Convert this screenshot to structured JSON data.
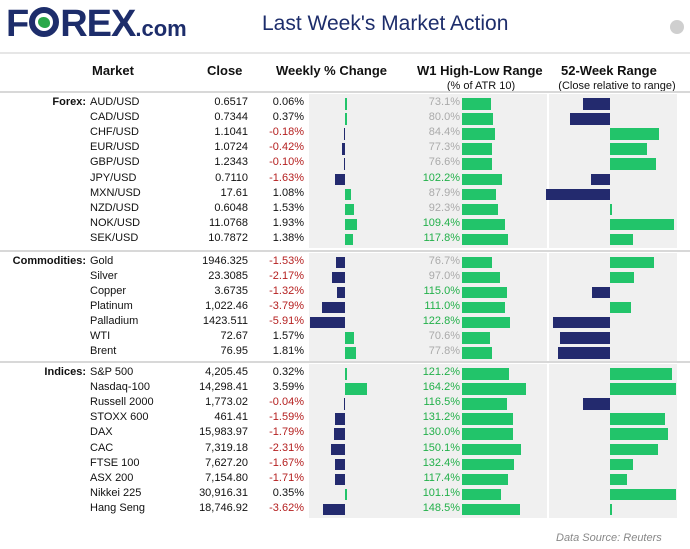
{
  "header": {
    "logo_text": "FOREX",
    "logo_suffix": ".com",
    "title": "Last Week's Market Action"
  },
  "columns": {
    "market": "Market",
    "close": "Close",
    "weekly": "Weekly % Change",
    "w1": "W1 High-Low Range",
    "w1_sub": "(% of ATR 10)",
    "w52": "52-Week Range",
    "w52_sub": "(Close relative to range)"
  },
  "colors": {
    "positive": "#22c46a",
    "negative": "#232a6e",
    "neg_text": "#b52020",
    "pos_text": "#111111",
    "atr_high": "#22b04a",
    "atr_low": "#aaaaaa"
  },
  "source": "Data Source: Reuters",
  "chart_data": {
    "type": "table",
    "groups": [
      {
        "label": "Forex:",
        "rows": [
          {
            "market": "AUD/USD",
            "close": "0.6517",
            "weekly": "0.06%",
            "weekly_value": 0.06,
            "atr": "73.1%",
            "atr_value": 73.1,
            "w52_value": -0.4
          },
          {
            "market": "CAD/USD",
            "close": "0.7344",
            "weekly": "0.37%",
            "weekly_value": 0.37,
            "atr": "80.0%",
            "atr_value": 80.0,
            "w52_value": -0.6
          },
          {
            "market": "CHF/USD",
            "close": "1.1041",
            "weekly": "-0.18%",
            "weekly_value": -0.18,
            "atr": "84.4%",
            "atr_value": 84.4,
            "w52_value": 0.73
          },
          {
            "market": "EUR/USD",
            "close": "1.0724",
            "weekly": "-0.42%",
            "weekly_value": -0.42,
            "atr": "77.3%",
            "atr_value": 77.3,
            "w52_value": 0.55
          },
          {
            "market": "GBP/USD",
            "close": "1.2343",
            "weekly": "-0.10%",
            "weekly_value": -0.1,
            "atr": "76.6%",
            "atr_value": 76.6,
            "w52_value": 0.68
          },
          {
            "market": "JPY/USD",
            "close": "0.7110",
            "weekly": "-1.63%",
            "weekly_value": -1.63,
            "atr": "102.2%",
            "atr_value": 102.2,
            "w52_value": -0.28
          },
          {
            "market": "MXN/USD",
            "close": "17.61",
            "weekly": "1.08%",
            "weekly_value": 1.08,
            "atr": "87.9%",
            "atr_value": 87.9,
            "w52_value": -0.96
          },
          {
            "market": "NZD/USD",
            "close": "0.6048",
            "weekly": "1.53%",
            "weekly_value": 1.53,
            "atr": "92.3%",
            "atr_value": 92.3,
            "w52_value": 0.02
          },
          {
            "market": "NOK/USD",
            "close": "11.0768",
            "weekly": "1.93%",
            "weekly_value": 1.93,
            "atr": "109.4%",
            "atr_value": 109.4,
            "w52_value": 0.96
          },
          {
            "market": "SEK/USD",
            "close": "10.7872",
            "weekly": "1.38%",
            "weekly_value": 1.38,
            "atr": "117.8%",
            "atr_value": 117.8,
            "w52_value": 0.34
          }
        ]
      },
      {
        "label": "Commodities:",
        "rows": [
          {
            "market": "Gold",
            "close": "1946.325",
            "weekly": "-1.53%",
            "weekly_value": -1.53,
            "atr": "76.7%",
            "atr_value": 76.7,
            "w52_value": 0.65
          },
          {
            "market": "Silver",
            "close": "23.3085",
            "weekly": "-2.17%",
            "weekly_value": -2.17,
            "atr": "97.0%",
            "atr_value": 97.0,
            "w52_value": 0.36
          },
          {
            "market": "Copper",
            "close": "3.6735",
            "weekly": "-1.32%",
            "weekly_value": -1.32,
            "atr": "115.0%",
            "atr_value": 115.0,
            "w52_value": -0.27
          },
          {
            "market": "Platinum",
            "close": "1,022.46",
            "weekly": "-3.79%",
            "weekly_value": -3.79,
            "atr": "111.0%",
            "atr_value": 111.0,
            "w52_value": 0.31
          },
          {
            "market": "Palladium",
            "close": "1423.511",
            "weekly": "-5.91%",
            "weekly_value": -5.91,
            "atr": "122.8%",
            "atr_value": 122.8,
            "w52_value": -0.85
          },
          {
            "market": "WTI",
            "close": "72.67",
            "weekly": "1.57%",
            "weekly_value": 1.57,
            "atr": "70.6%",
            "atr_value": 70.6,
            "w52_value": -0.75
          },
          {
            "market": "Brent",
            "close": "76.95",
            "weekly": "1.81%",
            "weekly_value": 1.81,
            "atr": "77.8%",
            "atr_value": 77.8,
            "w52_value": -0.78
          }
        ]
      },
      {
        "label": "Indices:",
        "rows": [
          {
            "market": "S&P 500",
            "close": "4,205.45",
            "weekly": "0.32%",
            "weekly_value": 0.32,
            "atr": "121.2%",
            "atr_value": 121.2,
            "w52_value": 0.92
          },
          {
            "market": "Nasdaq-100",
            "close": "14,298.41",
            "weekly": "3.59%",
            "weekly_value": 3.59,
            "atr": "164.2%",
            "atr_value": 164.2,
            "w52_value": 0.99
          },
          {
            "market": "Russell 2000",
            "close": "1,773.02",
            "weekly": "-0.04%",
            "weekly_value": -0.04,
            "atr": "116.5%",
            "atr_value": 116.5,
            "w52_value": -0.4
          },
          {
            "market": "STOXX 600",
            "close": "461.41",
            "weekly": "-1.59%",
            "weekly_value": -1.59,
            "atr": "131.2%",
            "atr_value": 131.2,
            "w52_value": 0.82
          },
          {
            "market": "DAX",
            "close": "15,983.97",
            "weekly": "-1.79%",
            "weekly_value": -1.79,
            "atr": "130.0%",
            "atr_value": 130.0,
            "w52_value": 0.86
          },
          {
            "market": "CAC",
            "close": "7,319.18",
            "weekly": "-2.31%",
            "weekly_value": -2.31,
            "atr": "150.1%",
            "atr_value": 150.1,
            "w52_value": 0.72
          },
          {
            "market": "FTSE 100",
            "close": "7,627.20",
            "weekly": "-1.67%",
            "weekly_value": -1.67,
            "atr": "132.4%",
            "atr_value": 132.4,
            "w52_value": 0.34
          },
          {
            "market": "ASX 200",
            "close": "7,154.80",
            "weekly": "-1.71%",
            "weekly_value": -1.71,
            "atr": "117.4%",
            "atr_value": 117.4,
            "w52_value": 0.25
          },
          {
            "market": "Nikkei 225",
            "close": "30,916.31",
            "weekly": "0.35%",
            "weekly_value": 0.35,
            "atr": "101.1%",
            "atr_value": 101.1,
            "w52_value": 0.98
          },
          {
            "market": "Hang Seng",
            "close": "18,746.92",
            "weekly": "-3.62%",
            "weekly_value": -3.62,
            "atr": "148.5%",
            "atr_value": 148.5,
            "w52_value": 0.02
          }
        ]
      }
    ]
  }
}
